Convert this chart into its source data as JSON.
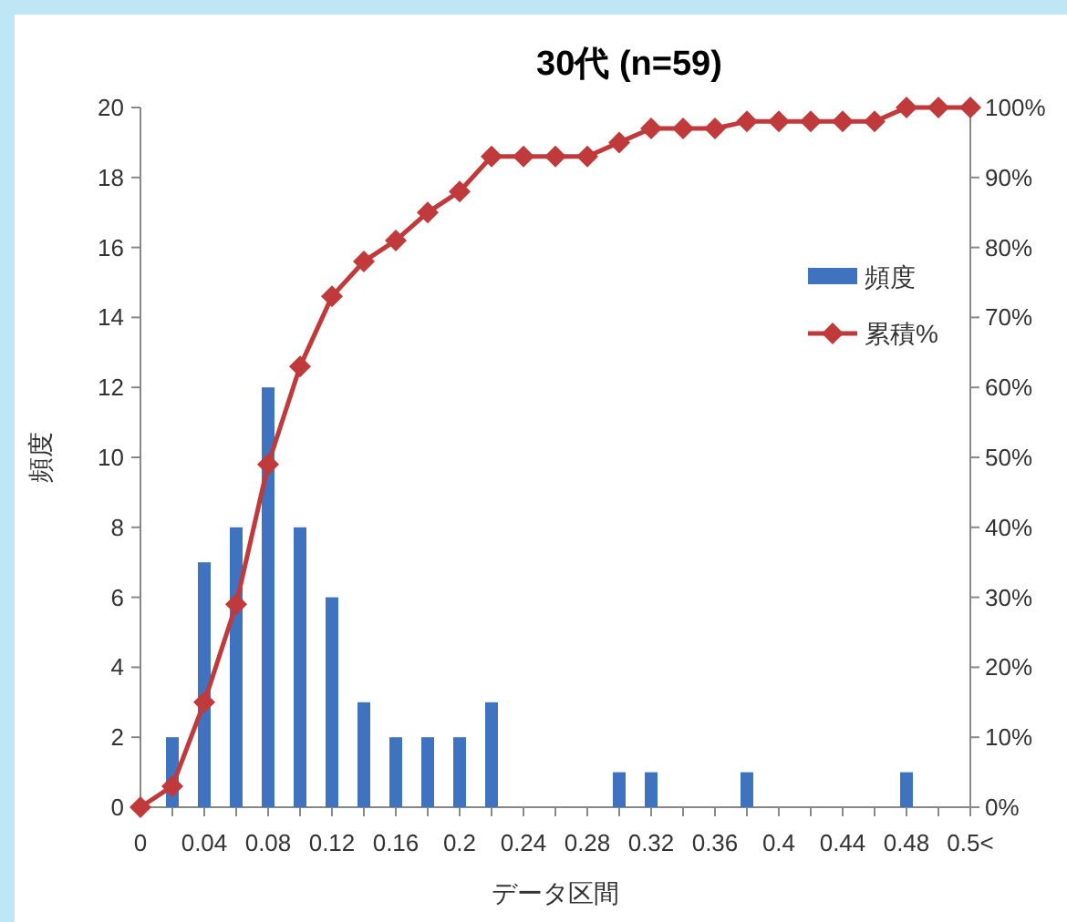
{
  "chart_data": {
    "type": "bar",
    "title": "30代 (n=59)",
    "xlabel": "データ区間",
    "ylabel": "頻度",
    "categories": [
      "0",
      null,
      "0.04",
      null,
      "0.08",
      null,
      "0.12",
      null,
      "0.16",
      null,
      "0.2",
      null,
      "0.24",
      null,
      "0.28",
      null,
      "0.32",
      null,
      "0.36",
      null,
      "0.4",
      null,
      "0.44",
      null,
      "0.48",
      null,
      "0.5<"
    ],
    "series": [
      {
        "name": "頻度",
        "color": "#3f73c0",
        "values": [
          0,
          2,
          7,
          8,
          12,
          8,
          6,
          3,
          2,
          2,
          2,
          3,
          0,
          0,
          0,
          1,
          1,
          0,
          0,
          1,
          0,
          0,
          0,
          0,
          1,
          0,
          0
        ]
      },
      {
        "name": "累積%",
        "type": "line",
        "axis": "y2",
        "marker": "diamond",
        "color": "#c0393b",
        "values": [
          0,
          3,
          15,
          29,
          49,
          63,
          73,
          78,
          81,
          85,
          88,
          93,
          93,
          93,
          93,
          95,
          97,
          97,
          97,
          98,
          98,
          98,
          98,
          98,
          100,
          100,
          100
        ]
      }
    ],
    "ylim": [
      0,
      20
    ],
    "yticks": [
      0,
      2,
      4,
      6,
      8,
      10,
      12,
      14,
      16,
      18,
      20
    ],
    "y2lim": [
      0,
      100
    ],
    "y2ticks": [
      {
        "value": 0,
        "label": "0%"
      },
      {
        "value": 10,
        "label": "10%"
      },
      {
        "value": 20,
        "label": "20%"
      },
      {
        "value": 30,
        "label": "30%"
      },
      {
        "value": 40,
        "label": "40%"
      },
      {
        "value": 50,
        "label": "50%"
      },
      {
        "value": 60,
        "label": "60%"
      },
      {
        "value": 70,
        "label": "70%"
      },
      {
        "value": 80,
        "label": "80%"
      },
      {
        "value": 90,
        "label": "90%"
      },
      {
        "value": 100,
        "label": "100%"
      }
    ],
    "legend": "right"
  }
}
